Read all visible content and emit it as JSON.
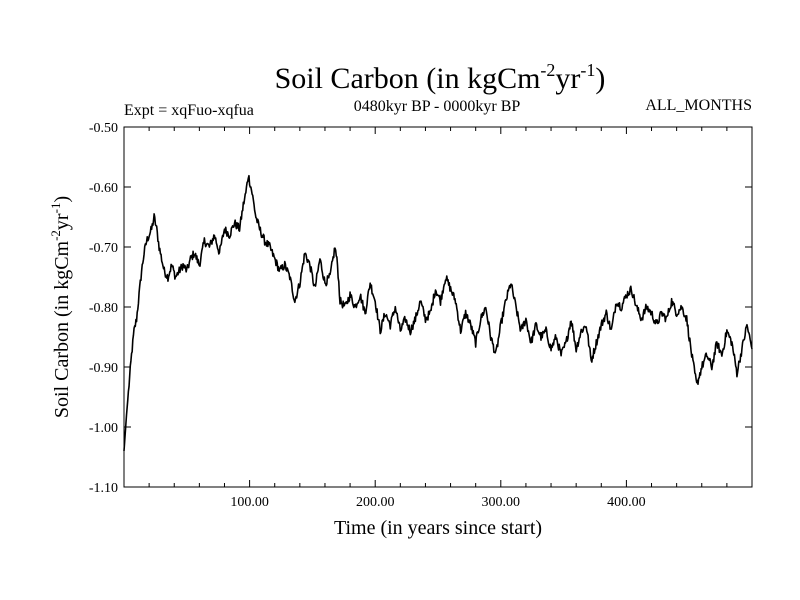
{
  "chart_data": {
    "type": "line",
    "title": "Soil Carbon (in kgCm",
    "title_sup1": "-2",
    "title_mid": "yr",
    "title_sup2": "-1",
    "title_end": ")",
    "expt_label": "Expt = xqFuo-xqfua",
    "period_label": "0480kyr BP - 0000kyr BP",
    "months_label": "ALL_MONTHS",
    "xlabel": "Time (in years since start)",
    "ylabel_main": "Soil Carbon (in kgCm",
    "ylabel_sup1": "-2",
    "ylabel_mid": "yr",
    "ylabel_sup2": "-1",
    "ylabel_end": ")",
    "xlim": [
      0,
      500
    ],
    "ylim": [
      -1.1,
      -0.5
    ],
    "x_ticks": [
      100,
      200,
      300,
      400
    ],
    "x_tick_labels": [
      "100.00",
      "200.00",
      "300.00",
      "400.00"
    ],
    "y_ticks": [
      -1.1,
      -1.0,
      -0.9,
      -0.8,
      -0.7,
      -0.6,
      -0.5
    ],
    "y_tick_labels": [
      "-1.10",
      "-1.00",
      "-0.90",
      "-0.80",
      "-0.70",
      "-0.60",
      "-0.50"
    ],
    "grid": false,
    "line_color": "#000000",
    "series": [
      {
        "name": "Soil Carbon",
        "x": [
          0,
          2,
          4,
          6,
          8,
          10,
          12,
          14,
          16,
          18,
          20,
          22,
          24,
          26,
          28,
          30,
          32,
          35,
          38,
          41,
          44,
          47,
          50,
          53,
          56,
          60,
          64,
          68,
          72,
          76,
          80,
          84,
          88,
          92,
          95,
          97,
          99,
          102,
          105,
          108,
          112,
          116,
          120,
          124,
          128,
          132,
          136,
          140,
          144,
          148,
          152,
          156,
          160,
          164,
          168,
          170,
          172,
          176,
          180,
          184,
          188,
          192,
          196,
          200,
          204,
          208,
          212,
          216,
          220,
          224,
          228,
          232,
          236,
          240,
          244,
          248,
          252,
          256,
          260,
          264,
          268,
          272,
          276,
          280,
          284,
          288,
          292,
          296,
          300,
          304,
          308,
          312,
          316,
          320,
          324,
          328,
          332,
          336,
          340,
          344,
          348,
          352,
          356,
          360,
          364,
          368,
          372,
          376,
          380,
          384,
          388,
          392,
          396,
          400,
          404,
          408,
          412,
          416,
          420,
          424,
          428,
          432,
          436,
          440,
          444,
          448,
          452,
          456,
          460,
          464,
          468,
          472,
          476,
          480,
          484,
          488,
          492,
          496,
          500
        ],
        "values": [
          -1.04,
          -0.98,
          -0.93,
          -0.88,
          -0.84,
          -0.82,
          -0.78,
          -0.74,
          -0.71,
          -0.69,
          -0.68,
          -0.67,
          -0.65,
          -0.67,
          -0.7,
          -0.72,
          -0.74,
          -0.75,
          -0.73,
          -0.75,
          -0.74,
          -0.73,
          -0.74,
          -0.72,
          -0.71,
          -0.73,
          -0.69,
          -0.7,
          -0.68,
          -0.71,
          -0.67,
          -0.68,
          -0.66,
          -0.67,
          -0.63,
          -0.61,
          -0.58,
          -0.61,
          -0.65,
          -0.67,
          -0.69,
          -0.7,
          -0.72,
          -0.74,
          -0.73,
          -0.75,
          -0.79,
          -0.76,
          -0.71,
          -0.73,
          -0.77,
          -0.72,
          -0.76,
          -0.75,
          -0.7,
          -0.73,
          -0.79,
          -0.8,
          -0.78,
          -0.8,
          -0.78,
          -0.81,
          -0.76,
          -0.79,
          -0.84,
          -0.81,
          -0.83,
          -0.8,
          -0.84,
          -0.82,
          -0.84,
          -0.82,
          -0.79,
          -0.82,
          -0.81,
          -0.77,
          -0.79,
          -0.75,
          -0.77,
          -0.79,
          -0.84,
          -0.81,
          -0.83,
          -0.86,
          -0.82,
          -0.8,
          -0.85,
          -0.88,
          -0.83,
          -0.79,
          -0.76,
          -0.8,
          -0.84,
          -0.82,
          -0.86,
          -0.83,
          -0.85,
          -0.84,
          -0.87,
          -0.85,
          -0.88,
          -0.86,
          -0.82,
          -0.87,
          -0.84,
          -0.83,
          -0.89,
          -0.86,
          -0.83,
          -0.81,
          -0.84,
          -0.79,
          -0.8,
          -0.78,
          -0.77,
          -0.8,
          -0.82,
          -0.8,
          -0.81,
          -0.83,
          -0.81,
          -0.82,
          -0.79,
          -0.81,
          -0.8,
          -0.82,
          -0.88,
          -0.93,
          -0.9,
          -0.88,
          -0.9,
          -0.86,
          -0.88,
          -0.84,
          -0.86,
          -0.91,
          -0.87,
          -0.83,
          -0.87
        ]
      }
    ]
  }
}
